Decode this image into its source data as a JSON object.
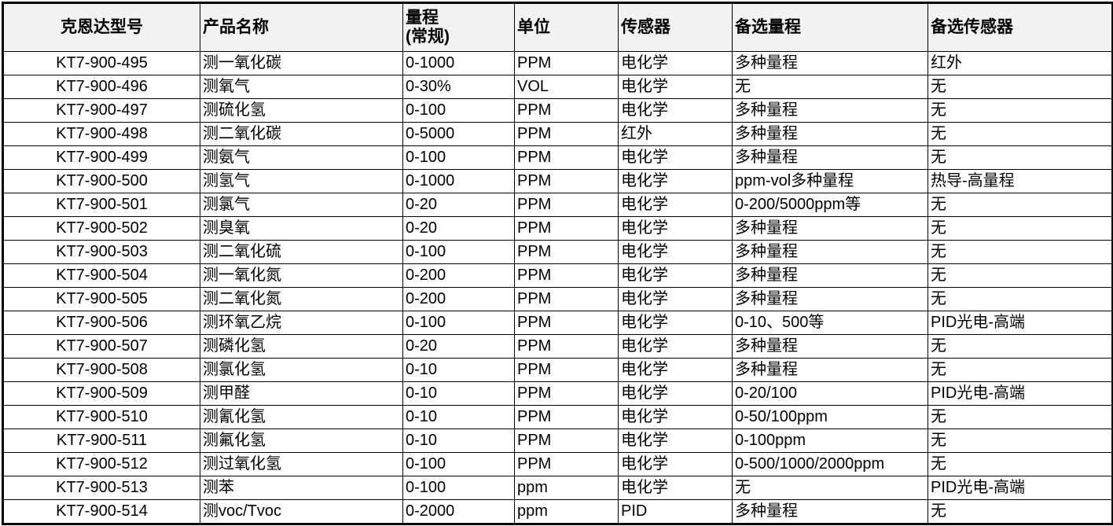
{
  "table": {
    "headers": [
      "克恩达型号",
      "产品名称",
      "量程\n(常规)",
      "单位",
      "传感器",
      "备选量程",
      "备选传感器"
    ],
    "rows": [
      [
        "KT7-900-495",
        "测一氧化碳",
        "0-1000",
        "PPM",
        "电化学",
        "多种量程",
        "红外"
      ],
      [
        "KT7-900-496",
        "测氧气",
        "0-30%",
        "VOL",
        "电化学",
        "无",
        "无"
      ],
      [
        "KT7-900-497",
        "测硫化氢",
        "0-100",
        "PPM",
        "电化学",
        "多种量程",
        "无"
      ],
      [
        "KT7-900-498",
        "测二氧化碳",
        "0-5000",
        "PPM",
        "红外",
        "多种量程",
        "无"
      ],
      [
        "KT7-900-499",
        "测氨气",
        "0-100",
        "PPM",
        "电化学",
        "多种量程",
        "无"
      ],
      [
        "KT7-900-500",
        "测氢气",
        "0-1000",
        "PPM",
        "电化学",
        "ppm-vol多种量程",
        "热导-高量程"
      ],
      [
        "KT7-900-501",
        "测氯气",
        "0-20",
        "PPM",
        "电化学",
        "0-200/5000ppm等",
        "无"
      ],
      [
        "KT7-900-502",
        "测臭氧",
        "0-20",
        "PPM",
        "电化学",
        "多种量程",
        "无"
      ],
      [
        "KT7-900-503",
        "测二氧化硫",
        "0-100",
        "PPM",
        "电化学",
        "多种量程",
        "无"
      ],
      [
        "KT7-900-504",
        "测一氧化氮",
        "0-200",
        "PPM",
        "电化学",
        "多种量程",
        "无"
      ],
      [
        "KT7-900-505",
        "测二氧化氮",
        "0-200",
        "PPM",
        "电化学",
        "多种量程",
        "无"
      ],
      [
        "KT7-900-506",
        "测环氧乙烷",
        "0-100",
        "PPM",
        "电化学",
        "0-10、500等",
        "PID光电-高端"
      ],
      [
        "KT7-900-507",
        "测磷化氢",
        "0-20",
        "PPM",
        "电化学",
        "多种量程",
        "无"
      ],
      [
        "KT7-900-508",
        "测氯化氢",
        "0-10",
        "PPM",
        "电化学",
        "多种量程",
        "无"
      ],
      [
        "KT7-900-509",
        "测甲醛",
        "0-10",
        "PPM",
        "电化学",
        "0-20/100",
        "PID光电-高端"
      ],
      [
        "KT7-900-510",
        "测氰化氢",
        "0-10",
        "PPM",
        "电化学",
        "0-50/100ppm",
        "无"
      ],
      [
        "KT7-900-511",
        "测氟化氢",
        "0-10",
        "PPM",
        "电化学",
        "0-100ppm",
        "无"
      ],
      [
        "KT7-900-512",
        "测过氧化氢",
        "0-100",
        "PPM",
        "电化学",
        "0-500/1000/2000ppm",
        "无"
      ],
      [
        "KT7-900-513",
        "测苯",
        "0-100",
        "ppm",
        "电化学",
        "无",
        "PID光电-高端"
      ],
      [
        "KT7-900-514",
        "测voc/Tvoc",
        "0-2000",
        "ppm",
        "PID",
        "多种量程",
        "无"
      ]
    ]
  }
}
